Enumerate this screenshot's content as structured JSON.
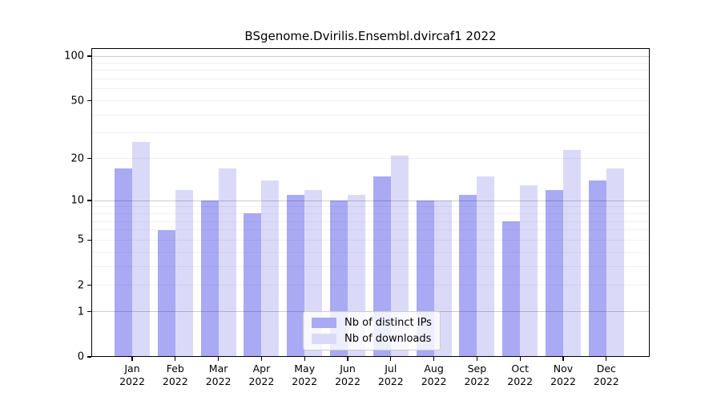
{
  "chart_data": {
    "type": "bar",
    "title": "BSgenome.Dvirilis.Ensembl.dvircaf1 2022",
    "categories": [
      "Jan",
      "Feb",
      "Mar",
      "Apr",
      "May",
      "Jun",
      "Jul",
      "Aug",
      "Sep",
      "Oct",
      "Nov",
      "Dec"
    ],
    "year_label": "2022",
    "series": [
      {
        "name": "Nb of distinct IPs",
        "color": "#a9aaf3",
        "values": [
          17,
          6,
          10,
          8,
          11,
          10,
          15,
          10,
          11,
          7,
          12,
          14
        ]
      },
      {
        "name": "Nb of downloads",
        "color": "#dadaf8",
        "values": [
          26,
          12,
          17,
          14,
          12,
          11,
          21,
          10,
          15,
          13,
          23,
          17
        ]
      }
    ],
    "xlabel": "",
    "ylabel": "",
    "y_axis": {
      "scale": "log1p",
      "tick_values": [
        0,
        1,
        2,
        5,
        10,
        20,
        50,
        100
      ],
      "tick_labels": [
        "0",
        "1",
        "2",
        "5",
        "10",
        "20",
        "50",
        "100"
      ],
      "minor_grid_values": [
        2,
        3,
        4,
        5,
        6,
        7,
        8,
        9,
        20,
        30,
        40,
        50,
        60,
        70,
        80,
        90
      ],
      "major_grid_values": [
        1,
        10,
        100
      ],
      "ylim": [
        0,
        101
      ],
      "grid": "on"
    },
    "legend": {
      "position": "bottom-center",
      "entries": [
        "Nb of distinct IPs",
        "Nb of downloads"
      ]
    }
  }
}
